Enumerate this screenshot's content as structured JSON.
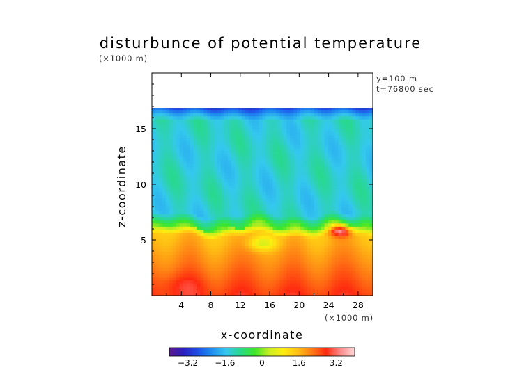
{
  "chart_data": {
    "type": "heatmap",
    "title": "disturbunce of potential temperature",
    "y_scale_note": "(×1000 m)",
    "x_scale_note": "(×1000 m)",
    "annotations": [
      "y=100 m",
      "t=76800 sec"
    ],
    "xlabel": "x-coordinate",
    "ylabel": "z-coordinate",
    "xlim": [
      0,
      30
    ],
    "ylim": [
      0,
      20
    ],
    "x_ticks": [
      4,
      8,
      12,
      16,
      20,
      24,
      28
    ],
    "x_tick_labels": [
      "4",
      "8",
      "12",
      "16",
      "20",
      "24",
      "28"
    ],
    "y_ticks": [
      5,
      10,
      15
    ],
    "y_tick_labels": [
      "5",
      "10",
      "15"
    ],
    "data_top_z": 17,
    "colorbar": {
      "range": [
        -4,
        4
      ],
      "ticks": [
        -3.2,
        -1.6,
        0,
        1.6,
        3.2
      ],
      "tick_labels": [
        "−3.2",
        "−1.6",
        "0",
        "1.6",
        "3.2"
      ],
      "colors": [
        "#5b1a8f",
        "#2a1fc0",
        "#1f4fe6",
        "#1f8ff0",
        "#34c8ee",
        "#28d98a",
        "#3ce62a",
        "#c8ee20",
        "#ffee10",
        "#ffc014",
        "#ff7a14",
        "#ff2a10",
        "#ff8a8a",
        "#ffd8d8"
      ]
    },
    "features": [
      {
        "region": "upper layer",
        "z_range": [
          6.5,
          17
        ],
        "value_approx": -1.4
      },
      {
        "region": "boundary layer",
        "z_range": [
          0,
          6
        ],
        "value_approx": 1.6
      },
      {
        "region": "surface",
        "z_range": [
          0,
          1.5
        ],
        "value_approx": 2.6
      },
      {
        "region": "warm anomaly",
        "x": 25.5,
        "z": 5.9,
        "value_approx": 3.0
      },
      {
        "region": "top boundary",
        "z": 17,
        "value_approx": -3.0
      }
    ]
  }
}
